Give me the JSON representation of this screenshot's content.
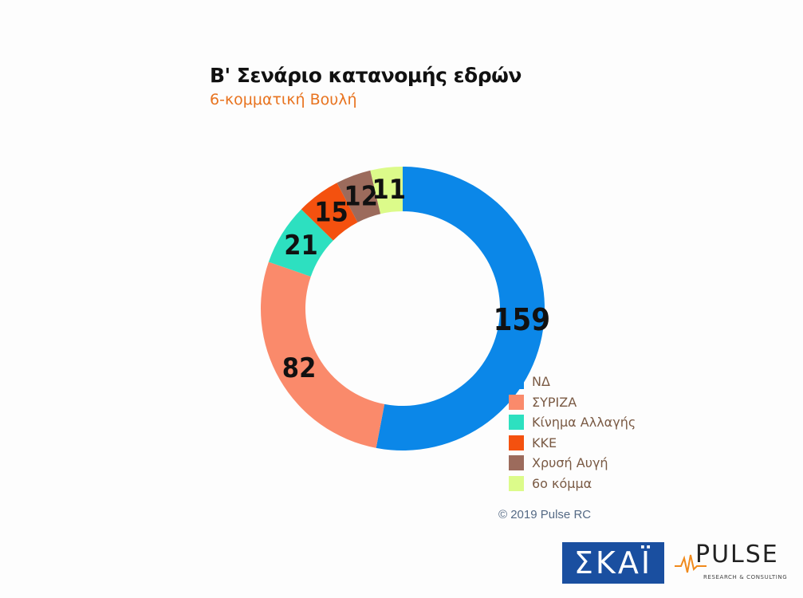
{
  "chart_data": {
    "type": "pie",
    "donut": true,
    "title": "Β' Σενάριο κατανομής εδρών",
    "subtitle": "6-κομματική Βουλή",
    "categories": [
      "ΝΔ",
      "ΣΥΡΙΖΑ",
      "Κίνημα Αλλαγής",
      "ΚΚΕ",
      "Χρυσή Αυγή",
      "6ο κόμμα"
    ],
    "values": [
      159,
      82,
      21,
      15,
      12,
      11
    ],
    "colors": [
      "#0b87e8",
      "#fa8a6b",
      "#2de0c0",
      "#f4510f",
      "#9c6b5c",
      "#dcfb8a"
    ],
    "legend_position": "bottom-right"
  },
  "credit": "© 2019 Pulse RC",
  "logos": {
    "skai": "ΣΚΑΪ",
    "pulse": "PULSE",
    "pulse_sub": "RESEARCH & CONSULTING"
  }
}
